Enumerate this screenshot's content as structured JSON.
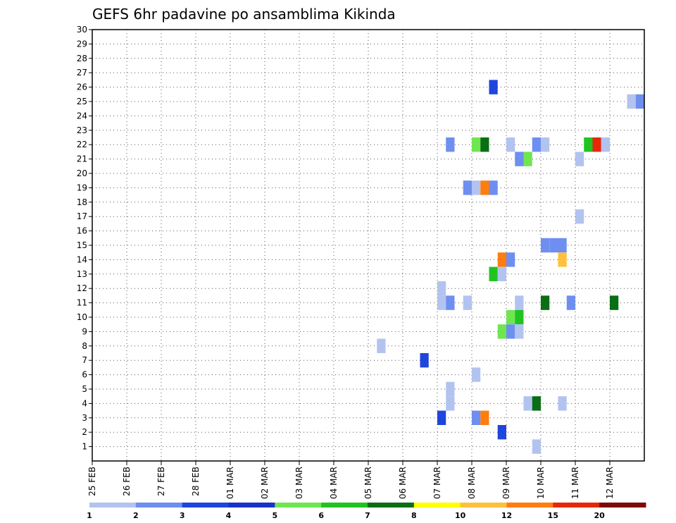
{
  "chart_data": {
    "type": "heatmap",
    "title": "GEFS 6hr padavine po ansamblima Kikinda",
    "xlabel": "",
    "ylabel": "",
    "x_ticks": [
      "25 FEB",
      "26 FEB",
      "27 FEB",
      "28 FEB",
      "01 MAR",
      "02 MAR",
      "03 MAR",
      "04 MAR",
      "05 MAR",
      "06 MAR",
      "07 MAR",
      "08 MAR",
      "09 MAR",
      "10 MAR",
      "11 MAR",
      "12 MAR"
    ],
    "y_ticks": [
      "1",
      "2",
      "3",
      "4",
      "5",
      "6",
      "7",
      "8",
      "9",
      "10",
      "11",
      "12",
      "13",
      "14",
      "15",
      "16",
      "17",
      "18",
      "19",
      "20",
      "21",
      "22",
      "23",
      "24",
      "25",
      "26",
      "27",
      "28",
      "29",
      "30"
    ],
    "ylim": [
      0,
      30
    ],
    "x_range_days": [
      0,
      16
    ],
    "grid": true,
    "legend": "colorbar-bottom",
    "colorbar": {
      "labels": [
        "1",
        "2",
        "3",
        "4",
        "5",
        "6",
        "7",
        "8",
        "10",
        "12",
        "15",
        "20"
      ],
      "colors": [
        "#b3c3f0",
        "#6e8ff0",
        "#1e46dc",
        "#1a32c8",
        "#6ee650",
        "#21c321",
        "#0a6e14",
        "#ffff00",
        "#ffc03c",
        "#ff7d0f",
        "#e6280a",
        "#7d0a0a"
      ]
    },
    "cells": [
      {
        "x": 11.5,
        "m": 26,
        "v": 3
      },
      {
        "x": 15.5,
        "m": 25,
        "v": 1
      },
      {
        "x": 15.75,
        "m": 25,
        "v": 2
      },
      {
        "x": 10.25,
        "m": 22,
        "v": 2
      },
      {
        "x": 11.0,
        "m": 22,
        "v": 5
      },
      {
        "x": 11.25,
        "m": 22,
        "v": 7
      },
      {
        "x": 12.0,
        "m": 22,
        "v": 1
      },
      {
        "x": 12.75,
        "m": 22,
        "v": 2
      },
      {
        "x": 13.0,
        "m": 22,
        "v": 1
      },
      {
        "x": 14.25,
        "m": 22,
        "v": 6
      },
      {
        "x": 14.5,
        "m": 22,
        "v": 15
      },
      {
        "x": 14.75,
        "m": 22,
        "v": 1
      },
      {
        "x": 12.25,
        "m": 21,
        "v": 2
      },
      {
        "x": 12.5,
        "m": 21,
        "v": 5
      },
      {
        "x": 14.0,
        "m": 21,
        "v": 1
      },
      {
        "x": 10.75,
        "m": 19,
        "v": 2
      },
      {
        "x": 11.0,
        "m": 19,
        "v": 1
      },
      {
        "x": 11.25,
        "m": 19,
        "v": 12
      },
      {
        "x": 11.5,
        "m": 19,
        "v": 2
      },
      {
        "x": 14.0,
        "m": 17,
        "v": 1
      },
      {
        "x": 13.0,
        "m": 15,
        "v": 2
      },
      {
        "x": 13.25,
        "m": 15,
        "v": 2
      },
      {
        "x": 13.5,
        "m": 15,
        "v": 2
      },
      {
        "x": 11.75,
        "m": 14,
        "v": 12
      },
      {
        "x": 12.0,
        "m": 14,
        "v": 2
      },
      {
        "x": 13.5,
        "m": 14,
        "v": 10
      },
      {
        "x": 11.5,
        "m": 13,
        "v": 6
      },
      {
        "x": 11.75,
        "m": 13,
        "v": 1
      },
      {
        "x": 10.0,
        "m": 12,
        "v": 1
      },
      {
        "x": 10.0,
        "m": 11,
        "v": 1
      },
      {
        "x": 10.25,
        "m": 11,
        "v": 2
      },
      {
        "x": 10.75,
        "m": 11,
        "v": 1
      },
      {
        "x": 12.25,
        "m": 11,
        "v": 1
      },
      {
        "x": 13.0,
        "m": 11,
        "v": 7
      },
      {
        "x": 13.75,
        "m": 11,
        "v": 2
      },
      {
        "x": 15.0,
        "m": 11,
        "v": 7
      },
      {
        "x": 12.0,
        "m": 10,
        "v": 5
      },
      {
        "x": 12.25,
        "m": 10,
        "v": 6
      },
      {
        "x": 11.75,
        "m": 9,
        "v": 5
      },
      {
        "x": 12.0,
        "m": 9,
        "v": 2
      },
      {
        "x": 12.25,
        "m": 9,
        "v": 1
      },
      {
        "x": 8.25,
        "m": 8,
        "v": 1
      },
      {
        "x": 9.5,
        "m": 7,
        "v": 3
      },
      {
        "x": 11.0,
        "m": 6,
        "v": 1
      },
      {
        "x": 10.25,
        "m": 5,
        "v": 1
      },
      {
        "x": 10.25,
        "m": 4,
        "v": 1
      },
      {
        "x": 12.5,
        "m": 4,
        "v": 1
      },
      {
        "x": 12.75,
        "m": 4,
        "v": 7
      },
      {
        "x": 13.5,
        "m": 4,
        "v": 1
      },
      {
        "x": 10.0,
        "m": 3,
        "v": 3
      },
      {
        "x": 11.0,
        "m": 3,
        "v": 2
      },
      {
        "x": 11.25,
        "m": 3,
        "v": 12
      },
      {
        "x": 11.75,
        "m": 2,
        "v": 3
      },
      {
        "x": 12.75,
        "m": 1,
        "v": 1
      }
    ]
  }
}
